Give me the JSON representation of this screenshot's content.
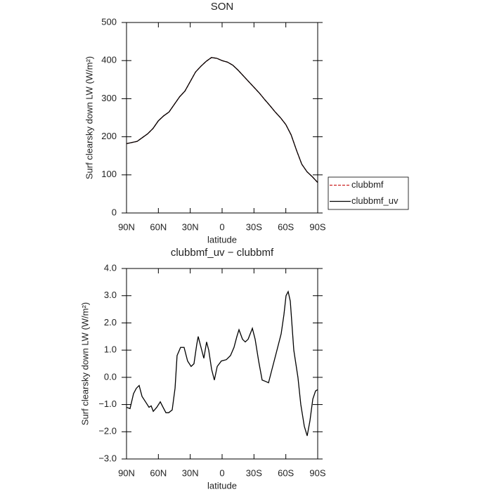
{
  "chart_data": [
    {
      "type": "line",
      "title": "SON",
      "xlabel": "latitude",
      "ylabel": "Surf clearsky down LW (W/m²)",
      "x": [
        90,
        85,
        80,
        75,
        70,
        65,
        60,
        55,
        50,
        45,
        40,
        35,
        30,
        25,
        20,
        15,
        10,
        5,
        0,
        -5,
        -10,
        -15,
        -20,
        -25,
        -30,
        -35,
        -40,
        -45,
        -50,
        -55,
        -60,
        -65,
        -70,
        -75,
        -80,
        -85,
        -90
      ],
      "series": [
        {
          "name": "clubbmf",
          "color": "#cc2222",
          "dash": true,
          "values": [
            182,
            185,
            188,
            198,
            208,
            222,
            242,
            255,
            265,
            285,
            305,
            320,
            345,
            370,
            385,
            398,
            408,
            406,
            400,
            396,
            388,
            375,
            360,
            345,
            330,
            315,
            298,
            282,
            265,
            250,
            232,
            205,
            165,
            128,
            108,
            95,
            80
          ]
        },
        {
          "name": "clubbmf_uv",
          "color": "#000000",
          "dash": false,
          "values": [
            182,
            185,
            188,
            198,
            208,
            222,
            242,
            255,
            265,
            285,
            305,
            320,
            345,
            370,
            385,
            398,
            408,
            406,
            400,
            396,
            388,
            375,
            360,
            345,
            330,
            315,
            298,
            282,
            265,
            250,
            232,
            205,
            165,
            128,
            108,
            95,
            80
          ]
        }
      ],
      "xlim": [
        90,
        -90
      ],
      "xticks": [
        {
          "value": 90,
          "label": "90N"
        },
        {
          "value": 60,
          "label": "60N"
        },
        {
          "value": 30,
          "label": "30N"
        },
        0,
        {
          "value": -30,
          "label": "30S"
        },
        {
          "value": -60,
          "label": "60S"
        },
        {
          "value": -90,
          "label": "90S"
        }
      ],
      "ylim": [
        0,
        500
      ],
      "yticks": [
        0,
        100,
        200,
        300,
        400,
        500
      ],
      "legend": "right"
    },
    {
      "type": "line",
      "title": "clubbmf_uv − clubbmf",
      "xlabel": "latitude",
      "ylabel": "Surf clearsky down LW (W/m²)",
      "x": [
        90,
        86.7,
        83.4,
        80.7,
        78.1,
        75.4,
        72.1,
        68.8,
        66.8,
        64.8,
        61.5,
        58.2,
        55.6,
        52.9,
        50.3,
        47.0,
        44.3,
        42.4,
        39.1,
        35.8,
        32.5,
        29.2,
        26.5,
        23.9,
        22.5,
        19.2,
        17.2,
        14.6,
        12.6,
        9.9,
        7.3,
        4.6,
        0.7,
        -4.0,
        -7.9,
        -11.2,
        -13.9,
        -15.9,
        -19.2,
        -21.8,
        -24.5,
        -28.5,
        -31.1,
        -34.4,
        -37.7,
        -41.0,
        -43.7,
        -47.0,
        -51.0,
        -55.6,
        -58.2,
        -60.2,
        -62.2,
        -64.2,
        -67.5,
        -71.4,
        -74.1,
        -77.4,
        -80.1,
        -82.7,
        -85.4,
        -88.0,
        -90
      ],
      "series": [
        {
          "name": "clubbmf_uv − clubbmf",
          "color": "#000000",
          "dash": false,
          "values": [
            -1.1,
            -1.15,
            -0.6,
            -0.4,
            -0.3,
            -0.7,
            -0.9,
            -1.1,
            -1.05,
            -1.25,
            -1.1,
            -0.9,
            -1.1,
            -1.3,
            -1.3,
            -1.2,
            -0.4,
            0.8,
            1.1,
            1.1,
            0.6,
            0.4,
            0.5,
            1.2,
            1.5,
            1.0,
            0.7,
            1.3,
            1.0,
            0.3,
            -0.1,
            0.4,
            0.6,
            0.65,
            0.8,
            1.1,
            1.5,
            1.75,
            1.4,
            1.3,
            1.4,
            1.8,
            1.4,
            0.6,
            -0.1,
            -0.15,
            -0.2,
            0.3,
            0.9,
            1.6,
            2.3,
            3.0,
            3.15,
            2.8,
            1.0,
            0.0,
            -1.0,
            -1.8,
            -2.15,
            -1.6,
            -0.8,
            -0.5,
            -0.45
          ]
        }
      ],
      "xlim": [
        90,
        -90
      ],
      "xticks": [
        {
          "value": 90,
          "label": "90N"
        },
        {
          "value": 60,
          "label": "60N"
        },
        {
          "value": 30,
          "label": "30N"
        },
        0,
        {
          "value": -30,
          "label": "30S"
        },
        {
          "value": -60,
          "label": "60S"
        },
        {
          "value": -90,
          "label": "90S"
        }
      ],
      "ylim": [
        -3,
        4
      ],
      "yticks": [
        {
          "value": -3,
          "label": "−3.0"
        },
        {
          "value": -2,
          "label": "−2.0"
        },
        {
          "value": -1,
          "label": "−1.0"
        },
        {
          "value": 0,
          "label": "0.0"
        },
        {
          "value": 1,
          "label": "1.0"
        },
        {
          "value": 2,
          "label": "2.0"
        },
        {
          "value": 3,
          "label": "3.0"
        },
        {
          "value": 4,
          "label": "4.0"
        }
      ]
    }
  ]
}
